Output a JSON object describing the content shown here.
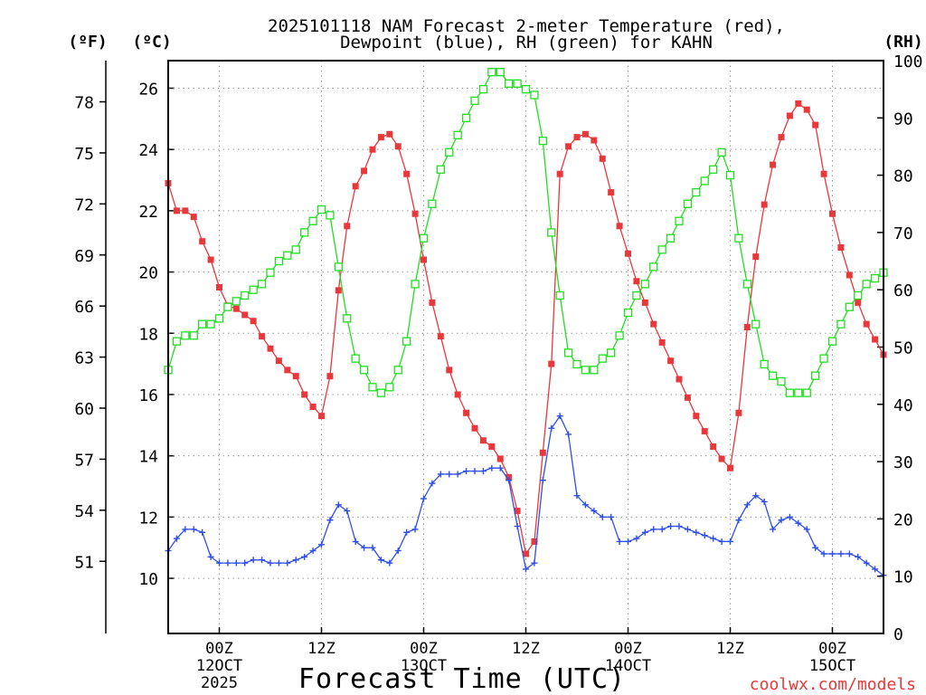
{
  "chart_data": {
    "type": "line",
    "title_line1": "2025101118 NAM Forecast 2-meter Temperature (red),",
    "title_line2": "Dewpoint (blue), RH (green) for KAHN",
    "xlabel": "Forecast Time (UTC)",
    "watermark": "coolwx.com/models",
    "left_axis_f_label": "(ºF)",
    "left_axis_c_label": "(ºC)",
    "right_axis_label": "(RH)",
    "x_hours_range": [
      -6,
      78
    ],
    "celsius_range": [
      8.2,
      26.9
    ],
    "rh_range": [
      0,
      100
    ],
    "celsius_ticks": [
      "10",
      "12",
      "14",
      "16",
      "18",
      "20",
      "22",
      "24",
      "26"
    ],
    "fahrenheit_ticks": [
      "51",
      "54",
      "57",
      "60",
      "63",
      "66",
      "69",
      "72",
      "75",
      "78"
    ],
    "rh_ticks": [
      "0",
      "10",
      "20",
      "30",
      "40",
      "50",
      "60",
      "70",
      "80",
      "90",
      "100"
    ],
    "x_ticks": [
      {
        "hour": 0,
        "line1": "00Z",
        "line2": "12OCT",
        "line3": "2025"
      },
      {
        "hour": 12,
        "line1": "12Z",
        "line2": "",
        "line3": ""
      },
      {
        "hour": 24,
        "line1": "00Z",
        "line2": "13OCT",
        "line3": ""
      },
      {
        "hour": 36,
        "line1": "12Z",
        "line2": "",
        "line3": ""
      },
      {
        "hour": 48,
        "line1": "00Z",
        "line2": "14OCT",
        "line3": ""
      },
      {
        "hour": 60,
        "line1": "12Z",
        "line2": "",
        "line3": ""
      },
      {
        "hour": 72,
        "line1": "00Z",
        "line2": "15OCT",
        "line3": ""
      }
    ],
    "series": [
      {
        "name": "Temperature (°C)",
        "color": "#e8383b",
        "marker": "square-filled",
        "axis": "celsius",
        "values": [
          22.9,
          22.0,
          22.0,
          21.8,
          21.0,
          20.4,
          19.5,
          18.9,
          18.8,
          18.6,
          18.4,
          17.9,
          17.5,
          17.1,
          16.8,
          16.6,
          16.0,
          15.6,
          15.3,
          16.6,
          19.4,
          21.5,
          22.8,
          23.3,
          24.0,
          24.4,
          24.5,
          24.1,
          23.2,
          21.9,
          20.4,
          19.0,
          17.9,
          16.8,
          16.0,
          15.4,
          14.9,
          14.5,
          14.3,
          13.9,
          13.3,
          12.2,
          10.8,
          11.2,
          14.1,
          17.0,
          23.2,
          24.1,
          24.4,
          24.5,
          24.3,
          23.7,
          22.6,
          21.5,
          20.6,
          19.7,
          19.0,
          18.3,
          17.7,
          17.1,
          16.5,
          15.9,
          15.3,
          14.8,
          14.3,
          13.9,
          13.6,
          15.4,
          18.2,
          20.5,
          22.2,
          23.5,
          24.4,
          25.1,
          25.5,
          25.3,
          24.8,
          23.2,
          21.9,
          20.8,
          19.9,
          19.0,
          18.3,
          17.8,
          17.3
        ]
      },
      {
        "name": "Dewpoint (°C)",
        "color": "#2f4fe8",
        "marker": "plus",
        "axis": "celsius",
        "values": [
          10.9,
          11.3,
          11.6,
          11.6,
          11.5,
          10.7,
          10.5,
          10.5,
          10.5,
          10.5,
          10.6,
          10.6,
          10.5,
          10.5,
          10.5,
          10.6,
          10.7,
          10.9,
          11.1,
          11.9,
          12.4,
          12.2,
          11.2,
          11.0,
          11.0,
          10.6,
          10.5,
          10.9,
          11.5,
          11.6,
          12.6,
          13.1,
          13.4,
          13.4,
          13.4,
          13.5,
          13.5,
          13.5,
          13.6,
          13.6,
          13.2,
          11.7,
          10.3,
          10.5,
          13.2,
          14.9,
          15.3,
          14.7,
          12.7,
          12.4,
          12.2,
          12.0,
          12.0,
          11.2,
          11.2,
          11.3,
          11.5,
          11.6,
          11.6,
          11.7,
          11.7,
          11.6,
          11.5,
          11.4,
          11.3,
          11.2,
          11.2,
          11.9,
          12.4,
          12.7,
          12.5,
          11.6,
          11.9,
          12.0,
          11.8,
          11.6,
          11.0,
          10.8,
          10.8,
          10.8,
          10.8,
          10.7,
          10.5,
          10.3,
          10.1
        ]
      },
      {
        "name": "Relative Humidity (%)",
        "color": "#22dd22",
        "marker": "square-open",
        "axis": "rh",
        "values": [
          46,
          51,
          52,
          52,
          54,
          54,
          55,
          57,
          58,
          59,
          60,
          61,
          63,
          65,
          66,
          67,
          70,
          72,
          74,
          73,
          64,
          55,
          48,
          46,
          43,
          42,
          43,
          46,
          51,
          61,
          69,
          75,
          81,
          84,
          87,
          90,
          93,
          95,
          98,
          98,
          96,
          96,
          95,
          94,
          86,
          70,
          59,
          49,
          47,
          46,
          46,
          48,
          49,
          52,
          56,
          59,
          61,
          64,
          67,
          69,
          72,
          75,
          77,
          79,
          81,
          84,
          80,
          69,
          61,
          54,
          47,
          45,
          44,
          42,
          42,
          42,
          45,
          48,
          51,
          54,
          57,
          59,
          61,
          62,
          63
        ]
      }
    ]
  }
}
